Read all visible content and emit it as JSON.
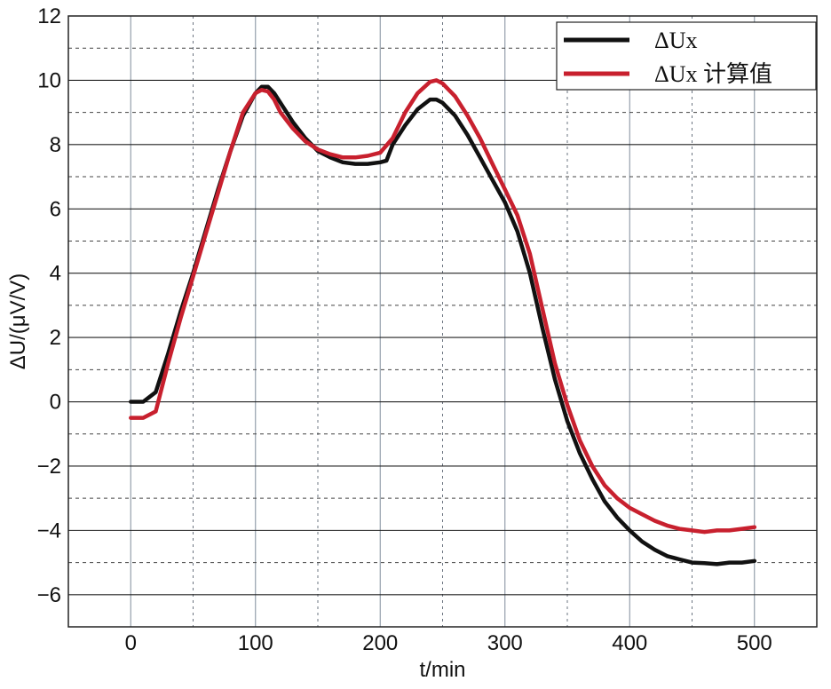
{
  "chart_data": {
    "type": "line",
    "title": "",
    "xlabel": "t/min",
    "ylabel": "ΔU/(μV/V)",
    "xlim": [
      -50,
      550
    ],
    "ylim": [
      -7,
      12
    ],
    "x_ticks": [
      0,
      100,
      200,
      300,
      400,
      500
    ],
    "y_ticks": [
      -6,
      -4,
      -2,
      0,
      2,
      4,
      6,
      8,
      10,
      12
    ],
    "grid": true,
    "legend_position": "top-right",
    "series": [
      {
        "name": "ΔUx",
        "color": "#111111",
        "x": [
          0,
          10,
          20,
          30,
          40,
          50,
          60,
          70,
          80,
          90,
          100,
          105,
          110,
          115,
          120,
          130,
          140,
          150,
          160,
          170,
          180,
          190,
          200,
          205,
          210,
          220,
          230,
          240,
          245,
          250,
          260,
          270,
          280,
          290,
          300,
          310,
          320,
          330,
          340,
          350,
          360,
          370,
          380,
          390,
          400,
          410,
          420,
          430,
          440,
          450,
          460,
          470,
          480,
          490,
          500
        ],
        "y": [
          0.0,
          0.0,
          0.3,
          1.5,
          2.8,
          4.0,
          5.3,
          6.6,
          7.8,
          8.9,
          9.6,
          9.8,
          9.8,
          9.6,
          9.3,
          8.7,
          8.2,
          7.8,
          7.6,
          7.45,
          7.4,
          7.4,
          7.45,
          7.5,
          8.0,
          8.6,
          9.1,
          9.4,
          9.4,
          9.3,
          8.9,
          8.3,
          7.6,
          6.9,
          6.2,
          5.3,
          4.0,
          2.3,
          0.7,
          -0.6,
          -1.6,
          -2.4,
          -3.1,
          -3.6,
          -4.0,
          -4.35,
          -4.6,
          -4.8,
          -4.9,
          -5.0,
          -5.02,
          -5.05,
          -5.0,
          -5.0,
          -4.95
        ]
      },
      {
        "name": "ΔUx 计算值",
        "color": "#c8202e",
        "x": [
          0,
          10,
          20,
          30,
          40,
          50,
          60,
          70,
          80,
          90,
          100,
          105,
          110,
          115,
          120,
          130,
          140,
          150,
          160,
          170,
          180,
          190,
          200,
          210,
          220,
          230,
          240,
          245,
          250,
          260,
          270,
          280,
          290,
          300,
          310,
          320,
          330,
          340,
          350,
          360,
          370,
          380,
          390,
          400,
          410,
          420,
          430,
          440,
          450,
          460,
          470,
          480,
          490,
          500
        ],
        "y": [
          -0.5,
          -0.5,
          -0.3,
          1.2,
          2.6,
          3.9,
          5.2,
          6.5,
          7.8,
          9.0,
          9.6,
          9.7,
          9.65,
          9.4,
          9.0,
          8.5,
          8.1,
          7.85,
          7.7,
          7.6,
          7.6,
          7.65,
          7.75,
          8.2,
          9.0,
          9.6,
          9.95,
          10.0,
          9.9,
          9.5,
          8.9,
          8.2,
          7.4,
          6.6,
          5.8,
          4.6,
          2.9,
          1.2,
          -0.1,
          -1.2,
          -2.0,
          -2.6,
          -3.0,
          -3.3,
          -3.5,
          -3.7,
          -3.85,
          -3.95,
          -4.0,
          -4.05,
          -4.0,
          -4.0,
          -3.95,
          -3.9
        ]
      }
    ]
  }
}
